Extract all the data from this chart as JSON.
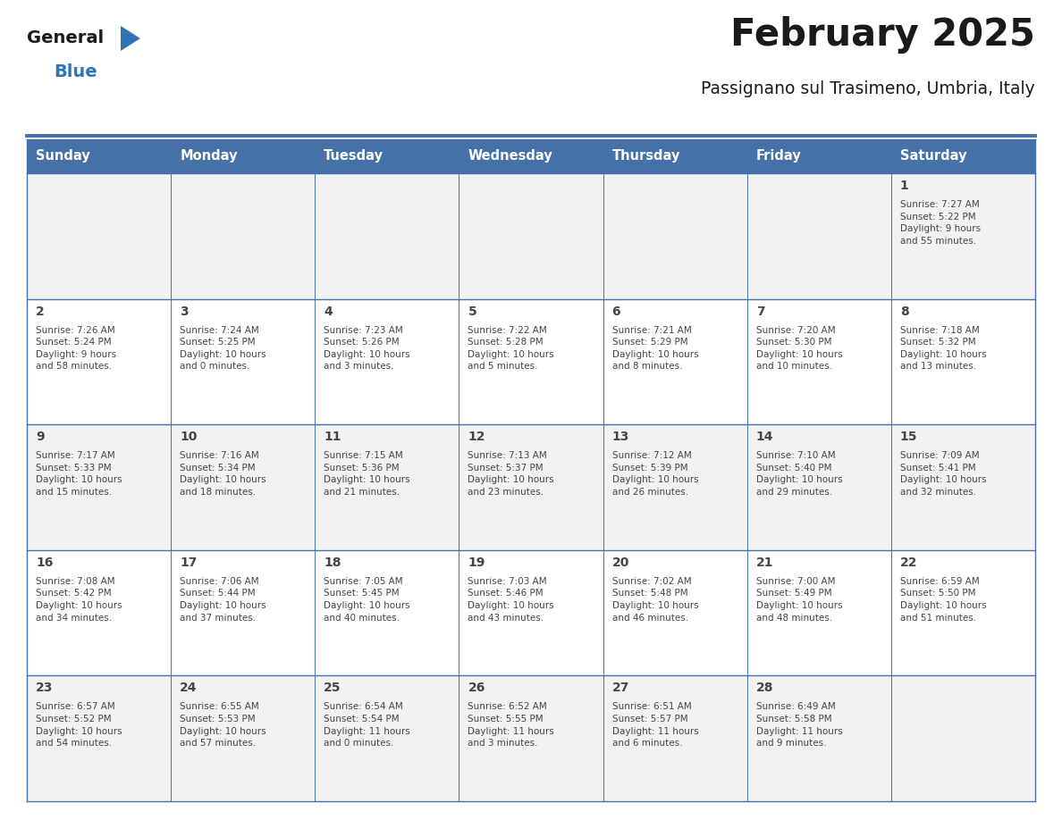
{
  "title": "February 2025",
  "subtitle": "Passignano sul Trasimeno, Umbria, Italy",
  "header_bg": "#4472a8",
  "header_text": "#ffffff",
  "cell_bg_odd": "#f2f2f2",
  "cell_bg_even": "#ffffff",
  "border_color": "#4472a8",
  "separator_color": "#4472a8",
  "day_headers": [
    "Sunday",
    "Monday",
    "Tuesday",
    "Wednesday",
    "Thursday",
    "Friday",
    "Saturday"
  ],
  "title_color": "#1a1a1a",
  "subtitle_color": "#1a1a1a",
  "text_color": "#444444",
  "logo_general_color": "#1a1a1a",
  "logo_blue_color": "#2e75b6",
  "logo_triangle_color": "#2e75b6",
  "calendar_data": [
    [
      null,
      null,
      null,
      null,
      null,
      null,
      {
        "day": "1",
        "sunrise": "7:27 AM",
        "sunset": "5:22 PM",
        "daylight": "9 hours\nand 55 minutes."
      }
    ],
    [
      {
        "day": "2",
        "sunrise": "7:26 AM",
        "sunset": "5:24 PM",
        "daylight": "9 hours\nand 58 minutes."
      },
      {
        "day": "3",
        "sunrise": "7:24 AM",
        "sunset": "5:25 PM",
        "daylight": "10 hours\nand 0 minutes."
      },
      {
        "day": "4",
        "sunrise": "7:23 AM",
        "sunset": "5:26 PM",
        "daylight": "10 hours\nand 3 minutes."
      },
      {
        "day": "5",
        "sunrise": "7:22 AM",
        "sunset": "5:28 PM",
        "daylight": "10 hours\nand 5 minutes."
      },
      {
        "day": "6",
        "sunrise": "7:21 AM",
        "sunset": "5:29 PM",
        "daylight": "10 hours\nand 8 minutes."
      },
      {
        "day": "7",
        "sunrise": "7:20 AM",
        "sunset": "5:30 PM",
        "daylight": "10 hours\nand 10 minutes."
      },
      {
        "day": "8",
        "sunrise": "7:18 AM",
        "sunset": "5:32 PM",
        "daylight": "10 hours\nand 13 minutes."
      }
    ],
    [
      {
        "day": "9",
        "sunrise": "7:17 AM",
        "sunset": "5:33 PM",
        "daylight": "10 hours\nand 15 minutes."
      },
      {
        "day": "10",
        "sunrise": "7:16 AM",
        "sunset": "5:34 PM",
        "daylight": "10 hours\nand 18 minutes."
      },
      {
        "day": "11",
        "sunrise": "7:15 AM",
        "sunset": "5:36 PM",
        "daylight": "10 hours\nand 21 minutes."
      },
      {
        "day": "12",
        "sunrise": "7:13 AM",
        "sunset": "5:37 PM",
        "daylight": "10 hours\nand 23 minutes."
      },
      {
        "day": "13",
        "sunrise": "7:12 AM",
        "sunset": "5:39 PM",
        "daylight": "10 hours\nand 26 minutes."
      },
      {
        "day": "14",
        "sunrise": "7:10 AM",
        "sunset": "5:40 PM",
        "daylight": "10 hours\nand 29 minutes."
      },
      {
        "day": "15",
        "sunrise": "7:09 AM",
        "sunset": "5:41 PM",
        "daylight": "10 hours\nand 32 minutes."
      }
    ],
    [
      {
        "day": "16",
        "sunrise": "7:08 AM",
        "sunset": "5:42 PM",
        "daylight": "10 hours\nand 34 minutes."
      },
      {
        "day": "17",
        "sunrise": "7:06 AM",
        "sunset": "5:44 PM",
        "daylight": "10 hours\nand 37 minutes."
      },
      {
        "day": "18",
        "sunrise": "7:05 AM",
        "sunset": "5:45 PM",
        "daylight": "10 hours\nand 40 minutes."
      },
      {
        "day": "19",
        "sunrise": "7:03 AM",
        "sunset": "5:46 PM",
        "daylight": "10 hours\nand 43 minutes."
      },
      {
        "day": "20",
        "sunrise": "7:02 AM",
        "sunset": "5:48 PM",
        "daylight": "10 hours\nand 46 minutes."
      },
      {
        "day": "21",
        "sunrise": "7:00 AM",
        "sunset": "5:49 PM",
        "daylight": "10 hours\nand 48 minutes."
      },
      {
        "day": "22",
        "sunrise": "6:59 AM",
        "sunset": "5:50 PM",
        "daylight": "10 hours\nand 51 minutes."
      }
    ],
    [
      {
        "day": "23",
        "sunrise": "6:57 AM",
        "sunset": "5:52 PM",
        "daylight": "10 hours\nand 54 minutes."
      },
      {
        "day": "24",
        "sunrise": "6:55 AM",
        "sunset": "5:53 PM",
        "daylight": "10 hours\nand 57 minutes."
      },
      {
        "day": "25",
        "sunrise": "6:54 AM",
        "sunset": "5:54 PM",
        "daylight": "11 hours\nand 0 minutes."
      },
      {
        "day": "26",
        "sunrise": "6:52 AM",
        "sunset": "5:55 PM",
        "daylight": "11 hours\nand 3 minutes."
      },
      {
        "day": "27",
        "sunrise": "6:51 AM",
        "sunset": "5:57 PM",
        "daylight": "11 hours\nand 6 minutes."
      },
      {
        "day": "28",
        "sunrise": "6:49 AM",
        "sunset": "5:58 PM",
        "daylight": "11 hours\nand 9 minutes."
      },
      null
    ]
  ]
}
